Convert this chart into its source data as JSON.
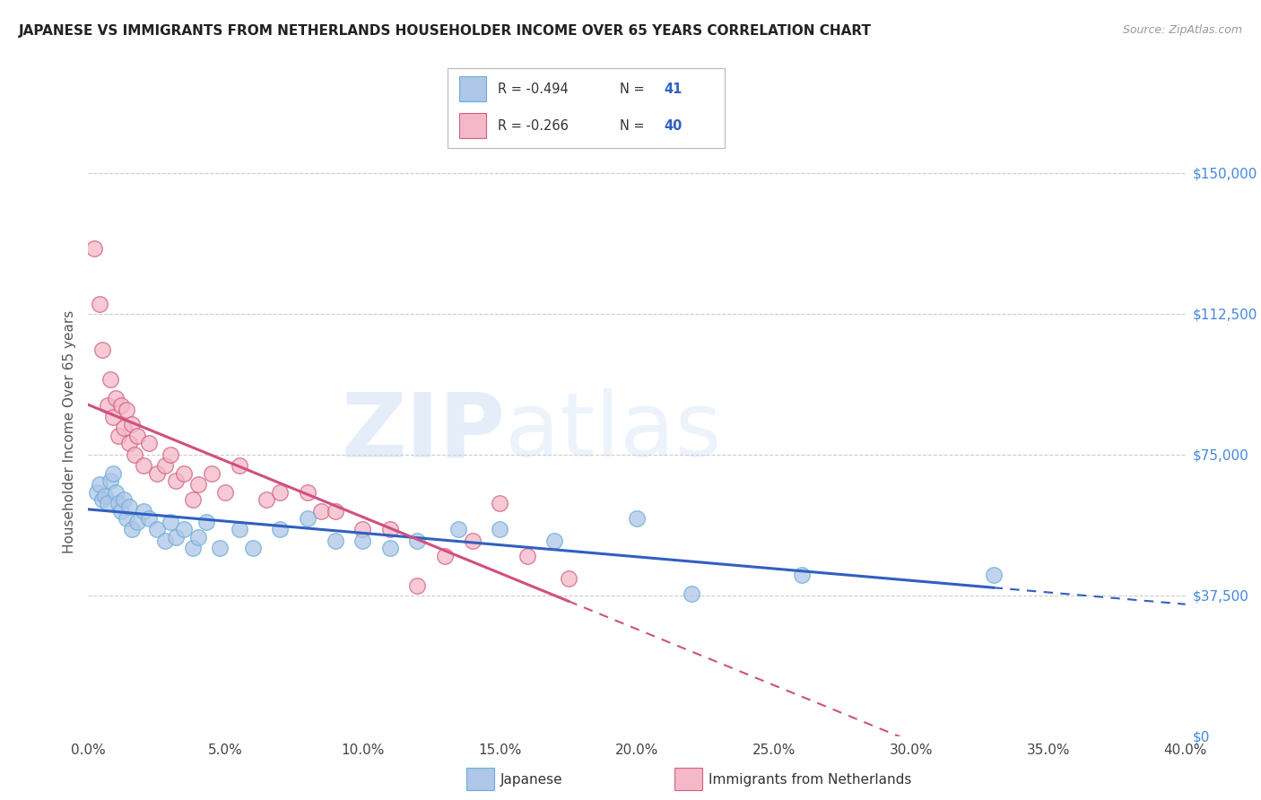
{
  "title": "JAPANESE VS IMMIGRANTS FROM NETHERLANDS HOUSEHOLDER INCOME OVER 65 YEARS CORRELATION CHART",
  "source": "Source: ZipAtlas.com",
  "ylabel": "Householder Income Over 65 years",
  "xlabel_vals": [
    0.0,
    5.0,
    10.0,
    15.0,
    20.0,
    25.0,
    30.0,
    35.0,
    40.0
  ],
  "ytick_labels": [
    "$0",
    "$37,500",
    "$75,000",
    "$112,500",
    "$150,000"
  ],
  "ytick_vals": [
    0,
    37500,
    75000,
    112500,
    150000
  ],
  "xlim": [
    0.0,
    40.0
  ],
  "ylim": [
    0,
    162000
  ],
  "legend_R_japanese": "-0.494",
  "legend_N_japanese": "41",
  "legend_R_netherlands": "-0.266",
  "legend_N_netherlands": "40",
  "watermark_zip": "ZIP",
  "watermark_atlas": "atlas",
  "watermark_color_zip": "#c5d8f0",
  "watermark_color_atlas": "#c5d8f0",
  "japanese_color": "#aec6e8",
  "japanese_edge": "#6baed6",
  "netherlands_color": "#f4b8c8",
  "netherlands_edge": "#d06080",
  "trendline_japanese_color": "#3060c0",
  "trendline_netherlands_color": "#d05080",
  "grid_color": "#cccccc",
  "title_color": "#222222",
  "right_axis_color": "#4488dd",
  "japanese_scatter": [
    [
      0.3,
      65000
    ],
    [
      0.4,
      67000
    ],
    [
      0.5,
      63000
    ],
    [
      0.6,
      64000
    ],
    [
      0.7,
      62000
    ],
    [
      0.8,
      68000
    ],
    [
      0.9,
      70000
    ],
    [
      1.0,
      65000
    ],
    [
      1.1,
      62000
    ],
    [
      1.2,
      60000
    ],
    [
      1.3,
      63000
    ],
    [
      1.4,
      58000
    ],
    [
      1.5,
      61000
    ],
    [
      1.6,
      55000
    ],
    [
      1.8,
      57000
    ],
    [
      2.0,
      60000
    ],
    [
      2.2,
      58000
    ],
    [
      2.5,
      55000
    ],
    [
      2.8,
      52000
    ],
    [
      3.0,
      57000
    ],
    [
      3.2,
      53000
    ],
    [
      3.5,
      55000
    ],
    [
      3.8,
      50000
    ],
    [
      4.0,
      53000
    ],
    [
      4.3,
      57000
    ],
    [
      4.8,
      50000
    ],
    [
      5.5,
      55000
    ],
    [
      6.0,
      50000
    ],
    [
      7.0,
      55000
    ],
    [
      8.0,
      58000
    ],
    [
      9.0,
      52000
    ],
    [
      10.0,
      52000
    ],
    [
      11.0,
      50000
    ],
    [
      12.0,
      52000
    ],
    [
      13.5,
      55000
    ],
    [
      15.0,
      55000
    ],
    [
      17.0,
      52000
    ],
    [
      20.0,
      58000
    ],
    [
      22.0,
      38000
    ],
    [
      26.0,
      43000
    ],
    [
      33.0,
      43000
    ]
  ],
  "netherlands_scatter": [
    [
      0.2,
      130000
    ],
    [
      0.4,
      115000
    ],
    [
      0.5,
      103000
    ],
    [
      0.7,
      88000
    ],
    [
      0.8,
      95000
    ],
    [
      0.9,
      85000
    ],
    [
      1.0,
      90000
    ],
    [
      1.1,
      80000
    ],
    [
      1.2,
      88000
    ],
    [
      1.3,
      82000
    ],
    [
      1.4,
      87000
    ],
    [
      1.5,
      78000
    ],
    [
      1.6,
      83000
    ],
    [
      1.7,
      75000
    ],
    [
      1.8,
      80000
    ],
    [
      2.0,
      72000
    ],
    [
      2.2,
      78000
    ],
    [
      2.5,
      70000
    ],
    [
      2.8,
      72000
    ],
    [
      3.0,
      75000
    ],
    [
      3.2,
      68000
    ],
    [
      3.5,
      70000
    ],
    [
      3.8,
      63000
    ],
    [
      4.0,
      67000
    ],
    [
      4.5,
      70000
    ],
    [
      5.0,
      65000
    ],
    [
      5.5,
      72000
    ],
    [
      6.5,
      63000
    ],
    [
      7.0,
      65000
    ],
    [
      8.0,
      65000
    ],
    [
      8.5,
      60000
    ],
    [
      9.0,
      60000
    ],
    [
      10.0,
      55000
    ],
    [
      11.0,
      55000
    ],
    [
      12.0,
      40000
    ],
    [
      13.0,
      48000
    ],
    [
      14.0,
      52000
    ],
    [
      15.0,
      62000
    ],
    [
      16.0,
      48000
    ],
    [
      17.5,
      42000
    ]
  ]
}
